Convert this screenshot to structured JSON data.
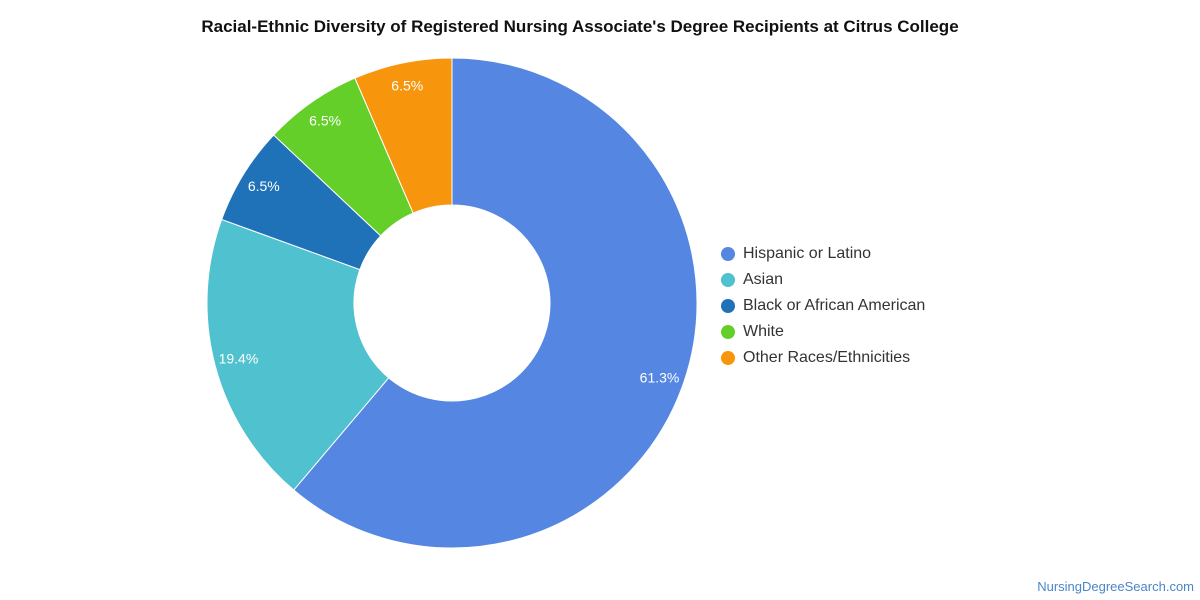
{
  "chart_data": {
    "type": "pie",
    "title": "Racial-Ethnic Diversity of Registered Nursing Associate's Degree Recipients at Citrus College",
    "donut": true,
    "legend_position": "right",
    "slices": [
      {
        "label": "Hispanic or Latino",
        "value": 61.3,
        "value_label": "61.3%",
        "color": "#5486e2"
      },
      {
        "label": "Asian",
        "value": 19.4,
        "value_label": "19.4%",
        "color": "#50c1ce"
      },
      {
        "label": "Black or African American",
        "value": 6.5,
        "value_label": "6.5%",
        "color": "#1f72b8"
      },
      {
        "label": "White",
        "value": 6.5,
        "value_label": "6.5%",
        "color": "#64cf28"
      },
      {
        "label": "Other Races/Ethnicities",
        "value": 6.5,
        "value_label": "6.5%",
        "color": "#f7960c"
      }
    ]
  },
  "footer": {
    "credit": "NursingDegreeSearch.com"
  }
}
